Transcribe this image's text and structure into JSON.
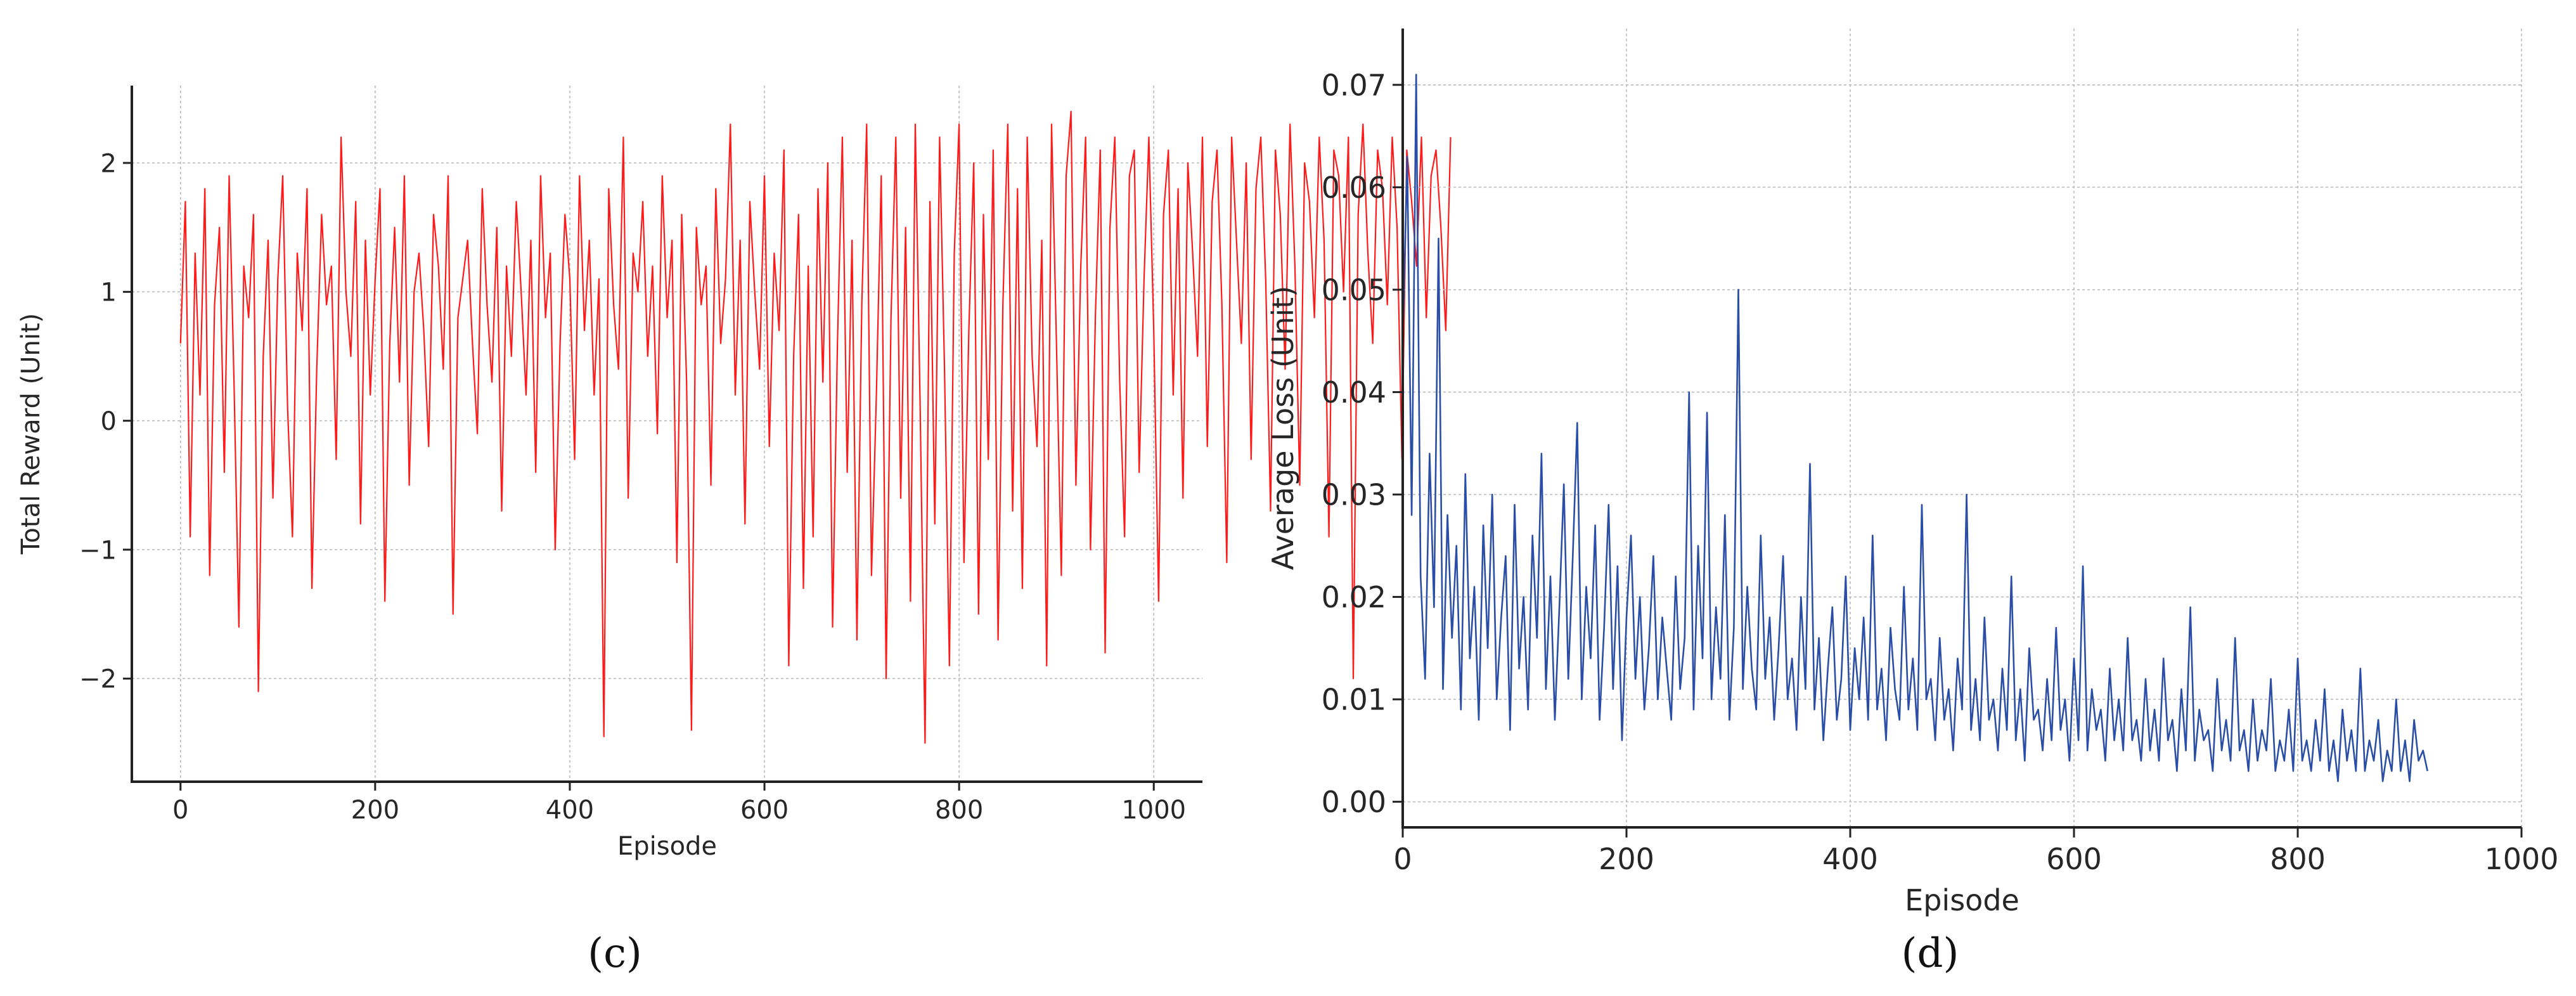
{
  "chart_data": [
    {
      "type": "line",
      "panel_label": "(c)",
      "title": "",
      "xlabel": "Episode",
      "ylabel": "Total Reward (Unit)",
      "xlim": [
        -50,
        1050
      ],
      "ylim": [
        -2.8,
        2.6
      ],
      "xticks": [
        0,
        200,
        400,
        600,
        800,
        1000
      ],
      "yticks": [
        -2,
        -1,
        0,
        1,
        2
      ],
      "xtick_labels": [
        "0",
        "200",
        "400",
        "600",
        "800",
        "1000"
      ],
      "ytick_labels": [
        "−2",
        "−1",
        "0",
        "1",
        "2"
      ],
      "grid": true,
      "legend": "none",
      "series": [
        {
          "color": "#ff1a1a",
          "x_start": 0,
          "x_step": 5,
          "values": [
            0.6,
            1.7,
            -0.9,
            1.3,
            0.2,
            1.8,
            -1.2,
            0.9,
            1.5,
            -0.4,
            1.9,
            0.3,
            -1.6,
            1.2,
            0.8,
            1.6,
            -2.1,
            0.5,
            1.4,
            -0.6,
            1.1,
            1.9,
            0.1,
            -0.9,
            1.3,
            0.7,
            1.8,
            -1.3,
            0.4,
            1.6,
            0.9,
            1.2,
            -0.3,
            2.2,
            1.0,
            0.5,
            1.7,
            -0.8,
            1.4,
            0.2,
            1.1,
            1.8,
            -1.4,
            0.6,
            1.5,
            0.3,
            1.9,
            -0.5,
            1.0,
            1.3,
            0.7,
            -0.2,
            1.6,
            1.2,
            0.4,
            1.9,
            -1.5,
            0.8,
            1.1,
            1.4,
            0.6,
            -0.1,
            1.8,
            0.9,
            0.3,
            1.5,
            -0.7,
            1.2,
            0.5,
            1.7,
            1.0,
            0.2,
            1.4,
            -0.4,
            1.9,
            0.8,
            1.3,
            -1.0,
            0.6,
            1.6,
            1.1,
            -0.3,
            1.9,
            0.7,
            1.4,
            0.2,
            1.1,
            -2.45,
            1.8,
            0.9,
            0.4,
            2.2,
            -0.6,
            1.3,
            1.0,
            1.7,
            0.5,
            1.2,
            -0.1,
            1.9,
            0.8,
            1.4,
            -1.1,
            1.6,
            0.3,
            -2.4,
            1.5,
            0.9,
            1.2,
            -0.5,
            1.8,
            0.6,
            1.1,
            2.3,
            0.2,
            1.4,
            -0.8,
            1.7,
            1.0,
            0.4,
            1.9,
            -0.2,
            1.3,
            0.7,
            2.1,
            -1.9,
            0.5,
            1.6,
            -1.3,
            1.2,
            -0.9,
            1.8,
            0.3,
            2.0,
            -1.6,
            0.6,
            2.2,
            -0.4,
            1.4,
            -1.7,
            0.9,
            2.3,
            -1.2,
            0.2,
            1.9,
            -2.0,
            0.8,
            2.2,
            -0.6,
            1.5,
            -1.4,
            2.3,
            0.1,
            -2.5,
            1.7,
            -0.8,
            2.2,
            0.4,
            -1.9,
            1.3,
            2.3,
            -1.1,
            0.7,
            2.0,
            -1.5,
            1.6,
            -0.3,
            2.1,
            -1.7,
            0.9,
            2.3,
            -0.7,
            1.8,
            -1.3,
            2.2,
            0.5,
            -0.2,
            1.4,
            -1.9,
            2.3,
            0.6,
            -1.2,
            1.9,
            2.4,
            -0.5,
            1.2,
            2.2,
            -1.0,
            0.8,
            2.1,
            -1.8,
            1.5,
            2.2,
            0.3,
            -0.9,
            1.9,
            2.1,
            -0.4,
            1.1,
            2.2,
            0.7,
            -1.4,
            1.6,
            2.1,
            0.2,
            1.8,
            -0.6,
            2.0,
            1.3,
            0.5,
            2.2,
            -0.2,
            1.7,
            2.1,
            0.9,
            -1.1,
            2.2,
            1.4,
            0.6,
            2.0,
            -0.3,
            1.8,
            2.2,
            1.1,
            -0.7,
            2.1,
            1.6,
            0.4,
            2.3,
            1.2,
            -0.5,
            2.0,
            1.7,
            0.8,
            2.2,
            1.4,
            -0.9,
            2.1,
            1.9,
            1.0,
            2.2,
            -2.0,
            1.6,
            2.3,
            1.3,
            0.6,
            2.1,
            1.8,
            0.9,
            2.2,
            1.5,
            -0.3,
            2.1,
            1.7,
            1.2,
            2.2,
            0.8,
            1.9,
            2.1,
            1.5,
            0.7,
            2.2
          ]
        }
      ]
    },
    {
      "type": "line",
      "panel_label": "(d)",
      "title": "",
      "xlabel": "Episode",
      "ylabel": "Average Loss (Unit)",
      "xlim": [
        0,
        1000
      ],
      "ylim": [
        -0.0025,
        0.0755
      ],
      "xticks": [
        0,
        200,
        400,
        600,
        800,
        1000
      ],
      "yticks": [
        0.0,
        0.01,
        0.02,
        0.03,
        0.04,
        0.05,
        0.06,
        0.07
      ],
      "xtick_labels": [
        "0",
        "200",
        "400",
        "600",
        "800",
        "1000"
      ],
      "ytick_labels": [
        "0.00",
        "0.01",
        "0.02",
        "0.03",
        "0.04",
        "0.05",
        "0.06",
        "0.07"
      ],
      "grid": true,
      "legend": "none",
      "series": [
        {
          "color": "#2a4ea6",
          "x_start": 0,
          "x_step": 4,
          "values": [
            0.045,
            0.063,
            0.028,
            0.071,
            0.022,
            0.012,
            0.034,
            0.019,
            0.055,
            0.011,
            0.028,
            0.016,
            0.025,
            0.009,
            0.032,
            0.014,
            0.021,
            0.008,
            0.027,
            0.015,
            0.03,
            0.01,
            0.018,
            0.024,
            0.007,
            0.029,
            0.013,
            0.02,
            0.009,
            0.026,
            0.016,
            0.034,
            0.011,
            0.022,
            0.008,
            0.019,
            0.031,
            0.012,
            0.024,
            0.037,
            0.01,
            0.021,
            0.014,
            0.027,
            0.008,
            0.017,
            0.029,
            0.011,
            0.023,
            0.006,
            0.018,
            0.026,
            0.012,
            0.02,
            0.009,
            0.015,
            0.024,
            0.01,
            0.018,
            0.013,
            0.008,
            0.022,
            0.011,
            0.016,
            0.04,
            0.009,
            0.025,
            0.014,
            0.038,
            0.01,
            0.019,
            0.012,
            0.028,
            0.008,
            0.017,
            0.05,
            0.011,
            0.021,
            0.013,
            0.009,
            0.026,
            0.012,
            0.018,
            0.008,
            0.015,
            0.024,
            0.01,
            0.014,
            0.007,
            0.02,
            0.011,
            0.033,
            0.009,
            0.016,
            0.006,
            0.013,
            0.019,
            0.008,
            0.012,
            0.022,
            0.007,
            0.015,
            0.01,
            0.018,
            0.008,
            0.026,
            0.009,
            0.013,
            0.006,
            0.017,
            0.011,
            0.008,
            0.021,
            0.009,
            0.014,
            0.007,
            0.029,
            0.01,
            0.012,
            0.006,
            0.016,
            0.008,
            0.011,
            0.005,
            0.014,
            0.009,
            0.03,
            0.007,
            0.012,
            0.006,
            0.018,
            0.008,
            0.01,
            0.005,
            0.013,
            0.007,
            0.022,
            0.006,
            0.011,
            0.004,
            0.015,
            0.008,
            0.009,
            0.005,
            0.012,
            0.006,
            0.017,
            0.007,
            0.01,
            0.004,
            0.014,
            0.006,
            0.023,
            0.005,
            0.011,
            0.007,
            0.009,
            0.004,
            0.013,
            0.006,
            0.01,
            0.005,
            0.016,
            0.006,
            0.008,
            0.004,
            0.012,
            0.005,
            0.009,
            0.004,
            0.014,
            0.006,
            0.008,
            0.003,
            0.011,
            0.005,
            0.019,
            0.004,
            0.009,
            0.006,
            0.007,
            0.003,
            0.012,
            0.005,
            0.008,
            0.004,
            0.016,
            0.005,
            0.007,
            0.003,
            0.01,
            0.004,
            0.007,
            0.005,
            0.012,
            0.003,
            0.006,
            0.004,
            0.009,
            0.003,
            0.014,
            0.004,
            0.006,
            0.003,
            0.008,
            0.004,
            0.011,
            0.003,
            0.006,
            0.002,
            0.009,
            0.004,
            0.007,
            0.003,
            0.013,
            0.003,
            0.006,
            0.004,
            0.008,
            0.002,
            0.005,
            0.003,
            0.01,
            0.003,
            0.006,
            0.002,
            0.008,
            0.004,
            0.005,
            0.003
          ]
        }
      ]
    }
  ]
}
